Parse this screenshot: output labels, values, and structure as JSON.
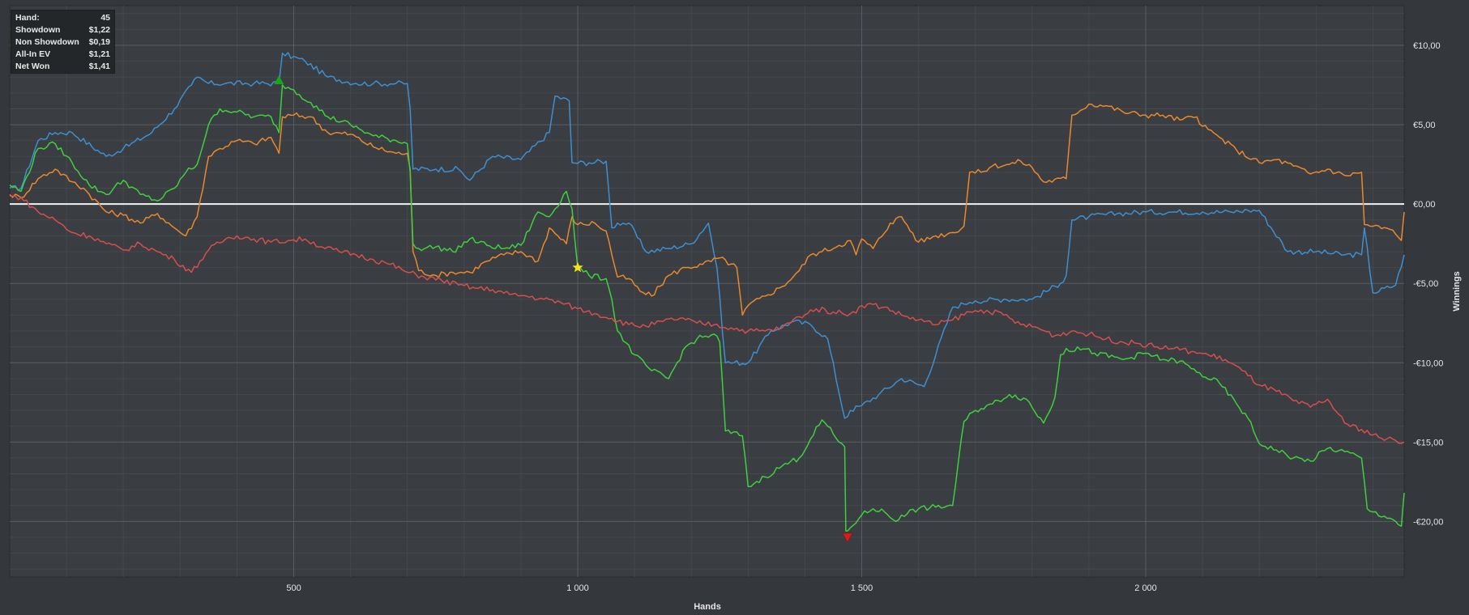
{
  "tooltip": {
    "rows": [
      {
        "label": "Hand:",
        "value": "45"
      },
      {
        "label": "Showdown",
        "value": "$1,22"
      },
      {
        "label": "Non Showdown",
        "value": "$0,19"
      },
      {
        "label": "All-In EV",
        "value": "$1,21"
      },
      {
        "label": "Net Won",
        "value": "$1,41"
      }
    ]
  },
  "chart_data": {
    "type": "line",
    "xlabel": "Hands",
    "ylabel": "Winnings",
    "xlim": [
      0,
      2455
    ],
    "ylim": [
      -23.5,
      12.5
    ],
    "x_ticks": [
      {
        "value": 500,
        "label": "500"
      },
      {
        "value": 1000,
        "label": "1 000"
      },
      {
        "value": 1500,
        "label": "1 500"
      },
      {
        "value": 2000,
        "label": "2 000"
      }
    ],
    "y_ticks": [
      {
        "value": 10,
        "label": "€10,00"
      },
      {
        "value": 5,
        "label": "€5,00"
      },
      {
        "value": 0,
        "label": "€0,00"
      },
      {
        "value": -5,
        "label": "-€5,00"
      },
      {
        "value": -10,
        "label": "-€10,00"
      },
      {
        "value": -15,
        "label": "-€15,00"
      },
      {
        "value": -20,
        "label": "-€20,00"
      }
    ],
    "grid": true,
    "series": [
      {
        "color": "#3d8fd1",
        "x": [
          0,
          20,
          50,
          80,
          110,
          170,
          200,
          250,
          290,
          320,
          330,
          350,
          380,
          430,
          474,
          480,
          520,
          560,
          610,
          640,
          680,
          700,
          705,
          710,
          750,
          790,
          810,
          850,
          900,
          950,
          960,
          985,
          990,
          1020,
          1050,
          1060,
          1070,
          1090,
          1120,
          1160,
          1200,
          1230,
          1245,
          1260,
          1300,
          1340,
          1380,
          1410,
          1440,
          1470,
          1475,
          1480,
          1500,
          1530,
          1570,
          1610,
          1660,
          1680,
          1690,
          1700,
          1750,
          1800,
          1850,
          1860,
          1870,
          1900,
          1950,
          2000,
          2050,
          2100,
          2150,
          2180,
          2200,
          2250,
          2300,
          2350,
          2380,
          2385,
          2400,
          2440,
          2455
        ],
        "y": [
          1,
          1,
          4,
          4.5,
          4.5,
          3,
          3.5,
          4.5,
          6,
          7.5,
          8,
          7.6,
          7.6,
          7.6,
          7.6,
          9.5,
          9,
          8,
          7.6,
          7.6,
          7.6,
          7.6,
          6,
          2.2,
          2.2,
          2.2,
          1.5,
          3,
          2.8,
          4.5,
          6.8,
          6.5,
          2.6,
          2.6,
          2.7,
          -1.5,
          -1.2,
          -1.2,
          -3,
          -2.8,
          -2.5,
          -1.2,
          -4,
          -10,
          -10,
          -8,
          -7.4,
          -7.6,
          -8.5,
          -13.5,
          -13.4,
          -13,
          -12.7,
          -12,
          -11,
          -11.5,
          -6.5,
          -6.3,
          -6.2,
          -6.1,
          -6,
          -6,
          -5,
          -4.5,
          -1,
          -0.8,
          -0.6,
          -0.5,
          -0.5,
          -0.5,
          -0.5,
          -0.4,
          -0.4,
          -3,
          -3,
          -3.2,
          -3.2,
          -1.5,
          -5.6,
          -5.1,
          -3.2
        ]
      },
      {
        "color": "#e8892d",
        "x": [
          0,
          20,
          50,
          80,
          110,
          130,
          170,
          200,
          230,
          260,
          290,
          310,
          330,
          350,
          370,
          400,
          430,
          460,
          474,
          480,
          500,
          530,
          560,
          600,
          640,
          680,
          700,
          705,
          710,
          720,
          750,
          780,
          810,
          840,
          870,
          900,
          930,
          950,
          980,
          990,
          1000,
          1030,
          1050,
          1070,
          1090,
          1110,
          1130,
          1160,
          1190,
          1220,
          1250,
          1280,
          1290,
          1300,
          1330,
          1360,
          1390,
          1410,
          1430,
          1460,
          1480,
          1490,
          1500,
          1520,
          1550,
          1570,
          1600,
          1630,
          1660,
          1680,
          1690,
          1710,
          1730,
          1760,
          1780,
          1800,
          1820,
          1860,
          1870,
          1900,
          1930,
          1960,
          2000,
          2030,
          2060,
          2090,
          2100,
          2130,
          2160,
          2200,
          2230,
          2260,
          2290,
          2320,
          2350,
          2380,
          2385,
          2400,
          2430,
          2440,
          2450,
          2455
        ],
        "y": [
          0.6,
          0.4,
          1.6,
          2.2,
          1.4,
          1,
          -0.5,
          -0.7,
          -1.2,
          -0.6,
          -1.5,
          -2,
          -0.8,
          3,
          3.5,
          4,
          3.8,
          4.2,
          3.2,
          5.5,
          5.6,
          5.5,
          4.5,
          4.4,
          3.6,
          3.2,
          3.2,
          2.2,
          -3,
          -4.2,
          -4.5,
          -4.3,
          -4.3,
          -3.6,
          -3.2,
          -3,
          -3.6,
          -1.5,
          -2.5,
          -0.8,
          -1.3,
          -1.2,
          -1.7,
          -4.6,
          -4.7,
          -5.5,
          -5.8,
          -4.5,
          -4,
          -3.8,
          -3.4,
          -4,
          -7,
          -6.4,
          -5.8,
          -5.2,
          -4.2,
          -3.2,
          -3,
          -2.6,
          -2.3,
          -3.2,
          -2.2,
          -2.8,
          -1.2,
          -0.8,
          -2.4,
          -2,
          -1.8,
          -1.4,
          2,
          2,
          2.4,
          2.5,
          2.7,
          2.3,
          1.4,
          1.6,
          5.6,
          6.3,
          6.2,
          5.8,
          5.6,
          5.6,
          5.3,
          5.5,
          4.9,
          4.2,
          3.4,
          2.6,
          2.8,
          2.4,
          1.9,
          2.2,
          1.8,
          2,
          -1.3,
          -1.4,
          -1.6,
          -1.9,
          -2.3,
          -0.5
        ]
      },
      {
        "color": "#3fcf3f",
        "x": [
          0,
          20,
          50,
          80,
          110,
          140,
          170,
          200,
          230,
          260,
          290,
          310,
          330,
          350,
          370,
          400,
          430,
          460,
          474,
          480,
          500,
          530,
          560,
          600,
          640,
          680,
          700,
          705,
          710,
          720,
          750,
          780,
          810,
          840,
          870,
          900,
          930,
          950,
          980,
          990,
          1000,
          1020,
          1050,
          1060,
          1070,
          1100,
          1130,
          1160,
          1190,
          1210,
          1240,
          1250,
          1260,
          1290,
          1300,
          1330,
          1360,
          1390,
          1410,
          1430,
          1450,
          1460,
          1470,
          1472,
          1475,
          1480,
          1500,
          1520,
          1540,
          1560,
          1570,
          1600,
          1630,
          1660,
          1680,
          1700,
          1730,
          1760,
          1790,
          1820,
          1840,
          1850,
          1860,
          1870,
          1880,
          1910,
          1960,
          2000,
          2030,
          2060,
          2090,
          2130,
          2160,
          2180,
          2200,
          2230,
          2260,
          2290,
          2320,
          2350,
          2380,
          2390,
          2400,
          2430,
          2440,
          2450,
          2455
        ],
        "y": [
          1.2,
          0.8,
          3.5,
          3.8,
          2.6,
          1.2,
          0.6,
          1.5,
          0.6,
          0.2,
          1,
          2,
          2.5,
          5,
          6,
          5.8,
          5.5,
          5.5,
          4.5,
          7.5,
          7.2,
          6.4,
          5.5,
          5,
          4.3,
          4,
          3.8,
          2,
          -2.5,
          -2.8,
          -2.7,
          -3,
          -2.2,
          -2.6,
          -2.8,
          -2.6,
          -0.5,
          -0.8,
          0.8,
          -0.3,
          -4,
          -4.5,
          -4.7,
          -6,
          -8,
          -9.5,
          -10.5,
          -11,
          -9,
          -8.5,
          -8.2,
          -8.7,
          -14.3,
          -14.6,
          -17.8,
          -17.2,
          -16.5,
          -16,
          -14.8,
          -13.6,
          -14.5,
          -15,
          -15.3,
          -20.6,
          -20.6,
          -20.4,
          -19.6,
          -19.2,
          -19.4,
          -20,
          -19.6,
          -19.2,
          -19.1,
          -19,
          -13.7,
          -13,
          -12.6,
          -12,
          -12.3,
          -13.8,
          -12.2,
          -9.5,
          -9.1,
          -9.3,
          -9,
          -9.4,
          -9.8,
          -9.4,
          -9.8,
          -9.9,
          -10.6,
          -11.3,
          -12.6,
          -13.5,
          -15.1,
          -15.5,
          -16,
          -16.2,
          -15.4,
          -15.6,
          -16,
          -19.2,
          -19.4,
          -19.8,
          -20,
          -20.3,
          -18.2
        ]
      },
      {
        "color": "#d64e4e",
        "x": [
          0,
          20,
          50,
          80,
          110,
          140,
          170,
          200,
          230,
          260,
          290,
          320,
          350,
          380,
          400,
          430,
          460,
          490,
          520,
          550,
          580,
          610,
          640,
          670,
          700,
          730,
          760,
          790,
          820,
          850,
          880,
          910,
          940,
          970,
          1000,
          1030,
          1060,
          1090,
          1120,
          1150,
          1180,
          1210,
          1240,
          1270,
          1300,
          1330,
          1360,
          1390,
          1420,
          1450,
          1480,
          1510,
          1540,
          1570,
          1600,
          1630,
          1660,
          1690,
          1720,
          1750,
          1780,
          1810,
          1840,
          1870,
          1900,
          1930,
          1960,
          1990,
          2020,
          2050,
          2080,
          2110,
          2140,
          2170,
          2200,
          2230,
          2260,
          2290,
          2320,
          2350,
          2380,
          2410,
          2440,
          2455
        ],
        "y": [
          0.5,
          0.4,
          -0.5,
          -1,
          -1.8,
          -2,
          -2.5,
          -2.9,
          -2.5,
          -3,
          -3.5,
          -4.3,
          -2.9,
          -2.2,
          -2,
          -2.2,
          -2.4,
          -2.3,
          -2.2,
          -2.7,
          -3,
          -3.2,
          -3.5,
          -3.8,
          -4.3,
          -4.6,
          -4.8,
          -5.1,
          -5.3,
          -5.4,
          -5.7,
          -5.8,
          -6,
          -6.2,
          -6.6,
          -6.9,
          -7.2,
          -7.6,
          -7.7,
          -7.4,
          -7.2,
          -7.5,
          -7.6,
          -7.8,
          -8,
          -8,
          -7.8,
          -7.1,
          -6.6,
          -6.8,
          -6.9,
          -6.3,
          -6.5,
          -7,
          -7.3,
          -7.6,
          -7.3,
          -6.8,
          -6.7,
          -7,
          -7.6,
          -7.8,
          -8.3,
          -8,
          -8.2,
          -8.5,
          -8.7,
          -8.8,
          -9,
          -9.1,
          -9.3,
          -9.5,
          -9.8,
          -10.5,
          -11.4,
          -11.8,
          -12.4,
          -12.8,
          -12.3,
          -13.8,
          -14.2,
          -14.7,
          -14.9,
          -15
        ]
      }
    ],
    "zero_line": {
      "value": 0,
      "color": "#f2f2f2"
    },
    "markers": [
      {
        "shape": "triangle-up",
        "color": "#1aa51a",
        "x": 474,
        "y": 7.8
      },
      {
        "shape": "star",
        "color": "#f5e21b",
        "x": 1000,
        "y": -4
      },
      {
        "shape": "triangle-down",
        "color": "#d41c1c",
        "x": 1475,
        "y": -21
      }
    ]
  }
}
